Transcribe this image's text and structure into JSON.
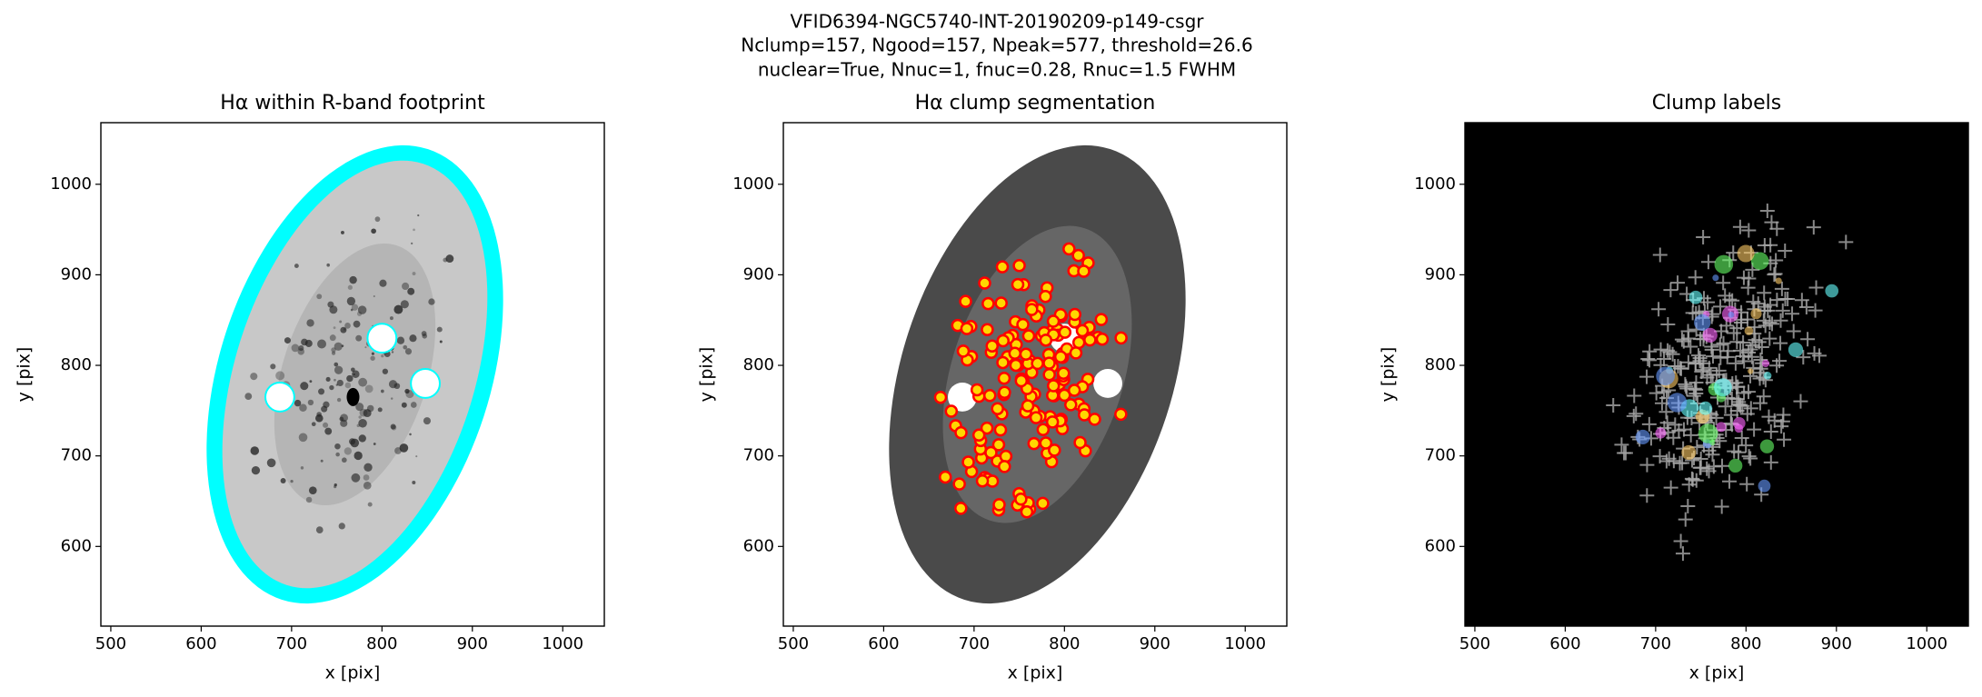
{
  "title": [
    "VFID6394-NGC5740-INT-20190209-p149-csgr",
    "Nclump=157, Ngood=157, Npeak=577, threshold=26.6",
    "nuclear=True, Nnuc=1, fnuc=0.28, Rnuc=1.5 FWHM"
  ],
  "chart_data": [
    {
      "type": "image",
      "title": "Hα within R-band footprint",
      "xlabel": "x [pix]",
      "ylabel": "y [pix]",
      "xlim": [
        489,
        1046
      ],
      "ylim": [
        512,
        1068
      ],
      "xticks": [
        500,
        600,
        700,
        800,
        900,
        1000
      ],
      "yticks": [
        600,
        700,
        800,
        900,
        1000
      ]
    },
    {
      "type": "image",
      "title": "Hα clump segmentation",
      "xlabel": "x [pix]",
      "ylabel": "y [pix]",
      "xlim": [
        489,
        1046
      ],
      "ylim": [
        512,
        1068
      ],
      "xticks": [
        500,
        600,
        700,
        800,
        900,
        1000
      ],
      "yticks": [
        600,
        700,
        800,
        900,
        1000
      ]
    },
    {
      "type": "image",
      "title": "Clump labels",
      "xlabel": "x [pix]",
      "ylabel": "y [pix]",
      "xlim": [
        489,
        1046
      ],
      "ylim": [
        512,
        1068
      ],
      "xticks": [
        500,
        600,
        700,
        800,
        900,
        1000
      ],
      "yticks": [
        600,
        700,
        800,
        900,
        1000
      ]
    }
  ]
}
